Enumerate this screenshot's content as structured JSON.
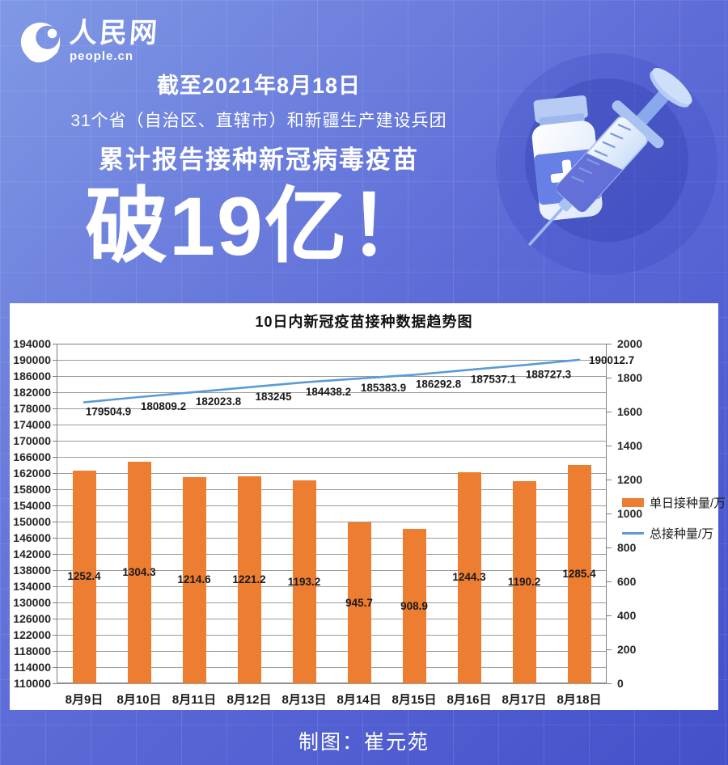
{
  "brand": {
    "name": "人民网",
    "domain": "people.cn",
    "swirl_icon": "people-cn-swirl-globe"
  },
  "header": {
    "date_line": "截至2021年8月18日",
    "scope_line": "31个省（自治区、直辖市）和新疆生产建设兵团",
    "subject_line": "累计报告接种新冠病毒疫苗",
    "headline": "破19亿！"
  },
  "illustration": {
    "icons": [
      "vaccine-vial-icon",
      "syringe-icon"
    ]
  },
  "chart_data": {
    "type": "combo-bar-line",
    "title": "10日内新冠疫苗接种数据趋势图",
    "categories": [
      "8月9日",
      "8月10日",
      "8月11日",
      "8月12日",
      "8月13日",
      "8月14日",
      "8月15日",
      "8月16日",
      "8月17日",
      "8月18日"
    ],
    "series": [
      {
        "name": "单日接种量/万",
        "type": "bar",
        "axis": "right",
        "color": "#ED7D31",
        "values": [
          1252.4,
          1304.3,
          1214.6,
          1221.2,
          1193.2,
          945.7,
          908.9,
          1244.3,
          1190.2,
          1285.4
        ]
      },
      {
        "name": "总接种量/万",
        "type": "line",
        "axis": "left",
        "color": "#5B9BD5",
        "values": [
          179504.9,
          180809.2,
          182023.8,
          183245,
          184438.2,
          185383.9,
          186292.8,
          187537.1,
          188727.3,
          190012.7
        ]
      }
    ],
    "left_axis": {
      "min": 110000,
      "max": 194000,
      "step": 4000
    },
    "right_axis": {
      "min": 0,
      "max": 2000,
      "step": 200
    },
    "legend_position": "right",
    "grid": true
  },
  "footer": {
    "credit": "制图：崔元苑"
  },
  "colors": {
    "bg_top": "#8099E5",
    "bg_mid": "#5E6CD8",
    "bg_bottom": "#4351CA",
    "panel": "#FFFFFF",
    "text_light": "#FFFFFF",
    "bar": "#ED7D31",
    "line": "#5B9BD5"
  }
}
